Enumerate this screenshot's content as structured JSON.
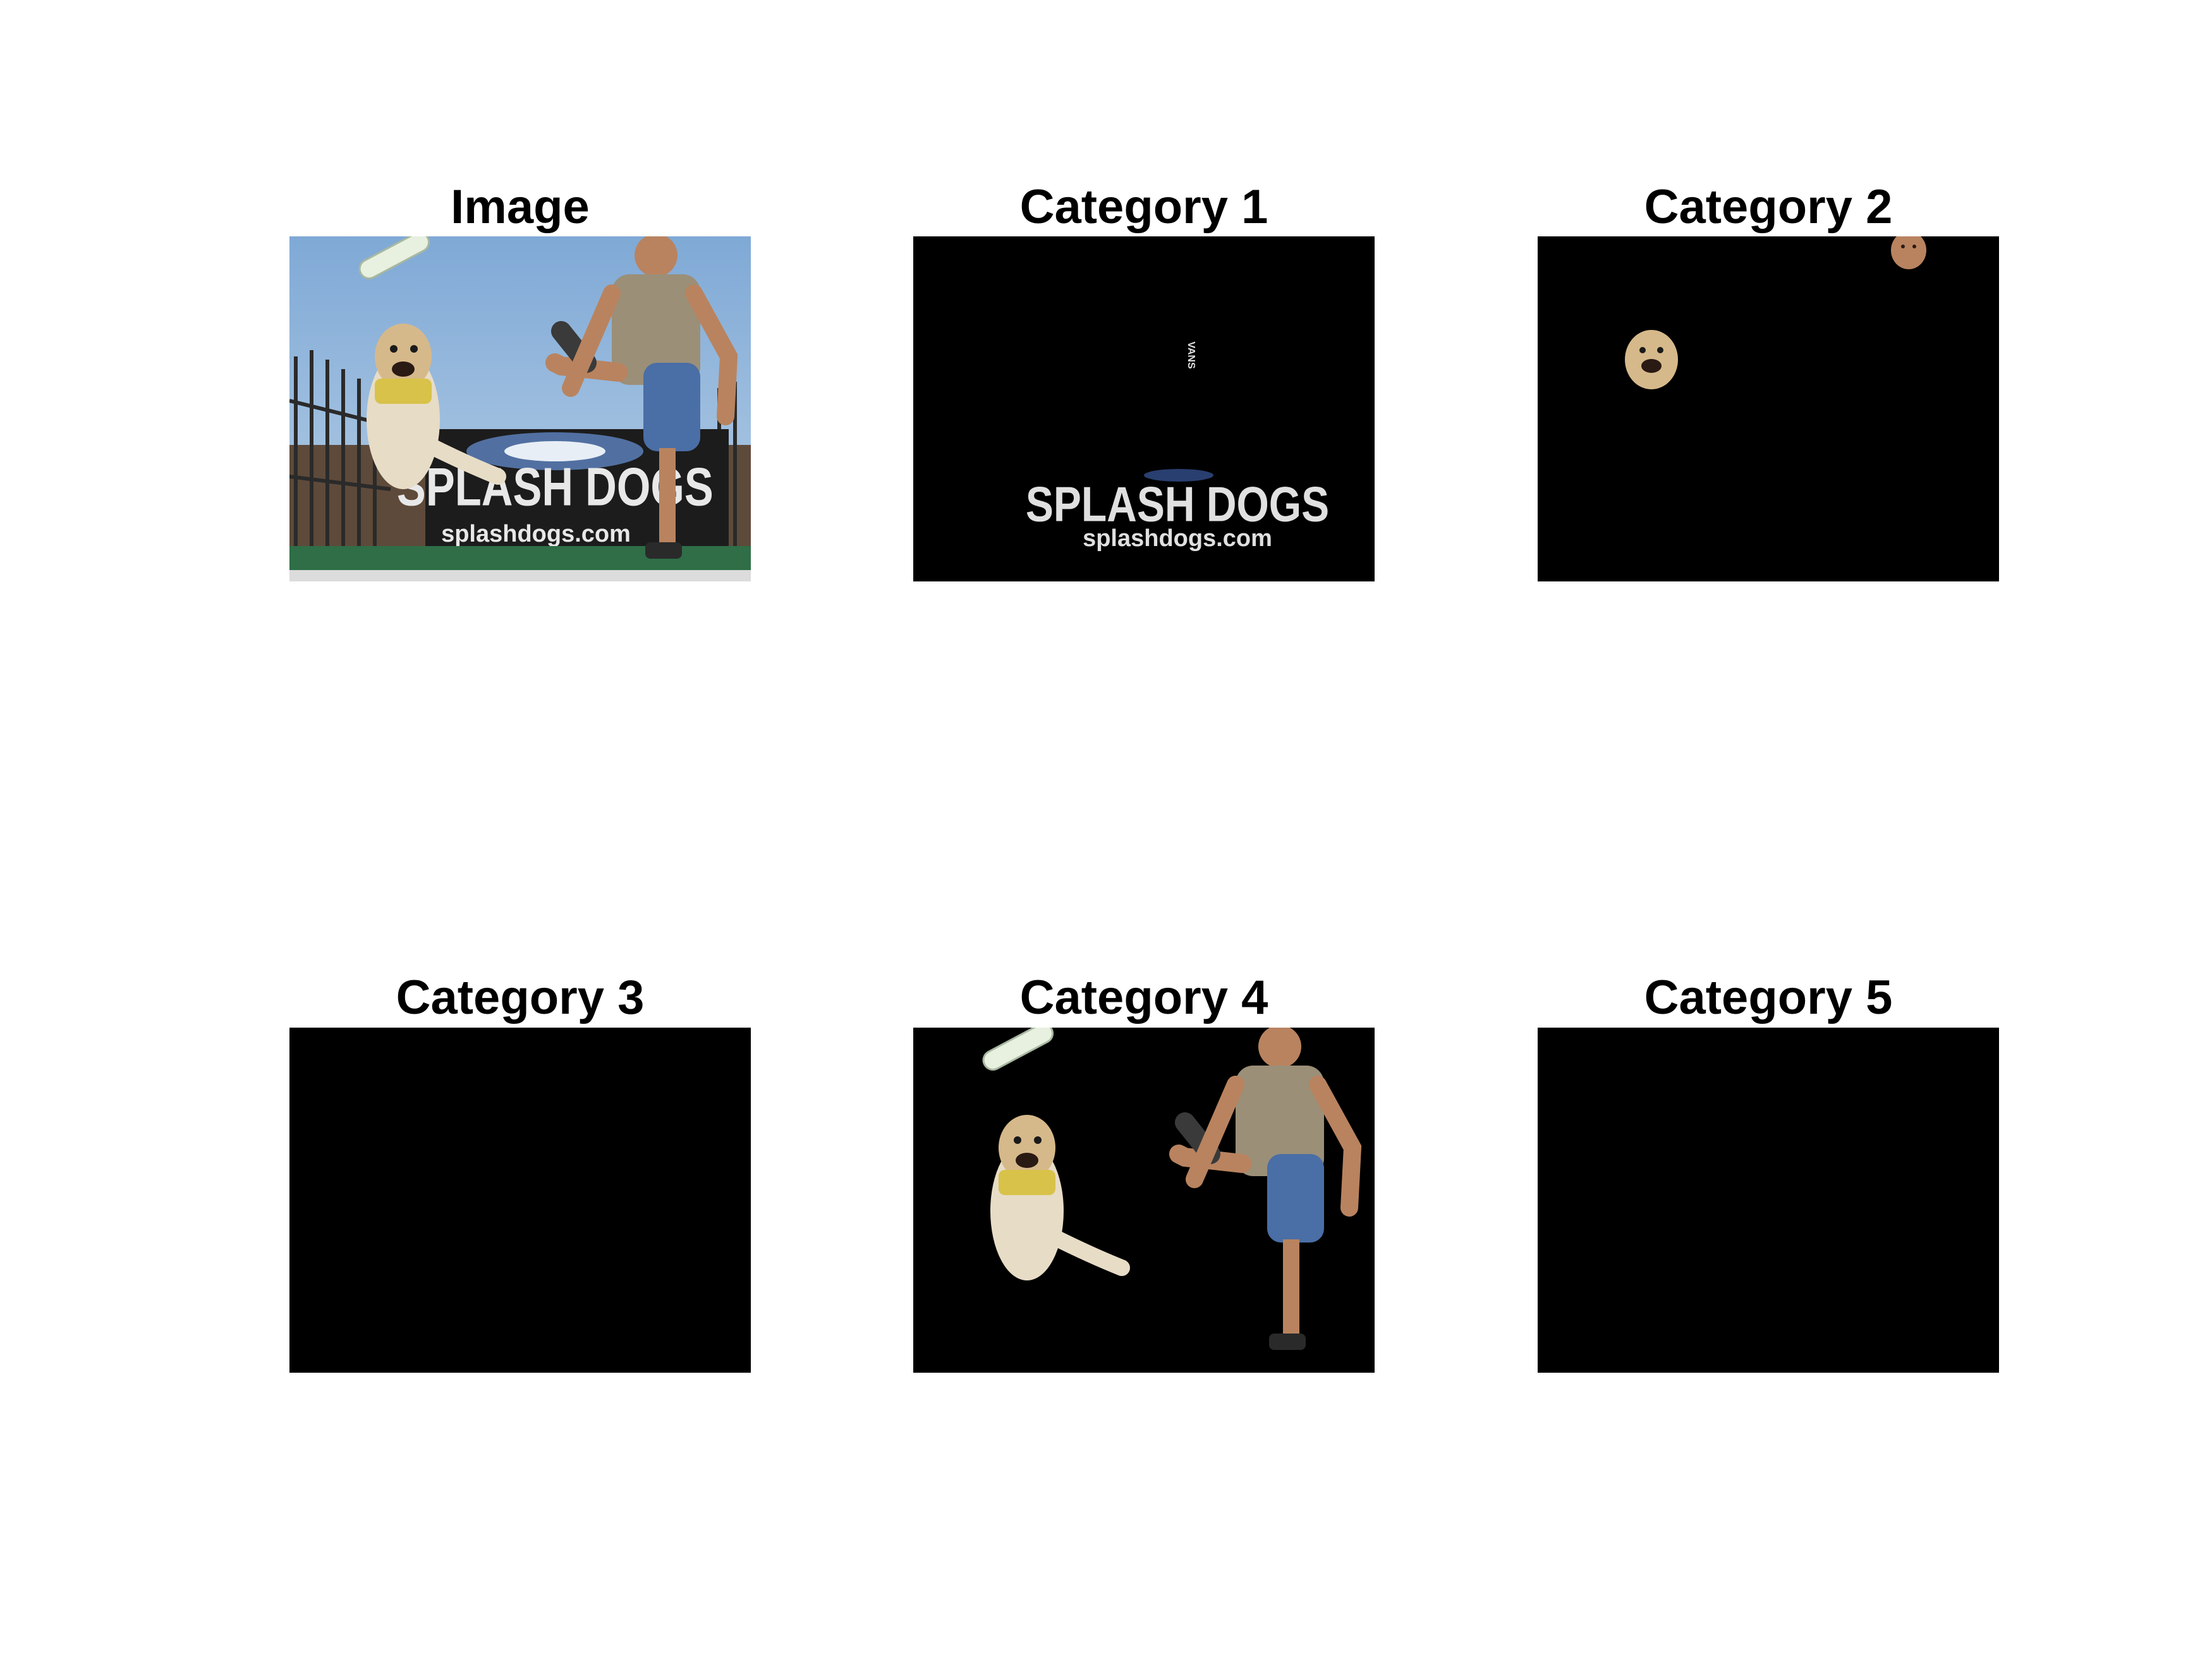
{
  "figure": {
    "panels": [
      {
        "title": "Image",
        "content": "original-photo"
      },
      {
        "title": "Category 1",
        "content": "banner-text-segment"
      },
      {
        "title": "Category 2",
        "content": "faces-segment"
      },
      {
        "title": "Category 3",
        "content": "empty"
      },
      {
        "title": "Category 4",
        "content": "dog-man-toy-segment"
      },
      {
        "title": "Category 5",
        "content": "empty"
      }
    ],
    "banner_text": {
      "brand": "SPLASH DOGS",
      "url": "splashdogs.com"
    },
    "shoe_text": "VANS"
  }
}
